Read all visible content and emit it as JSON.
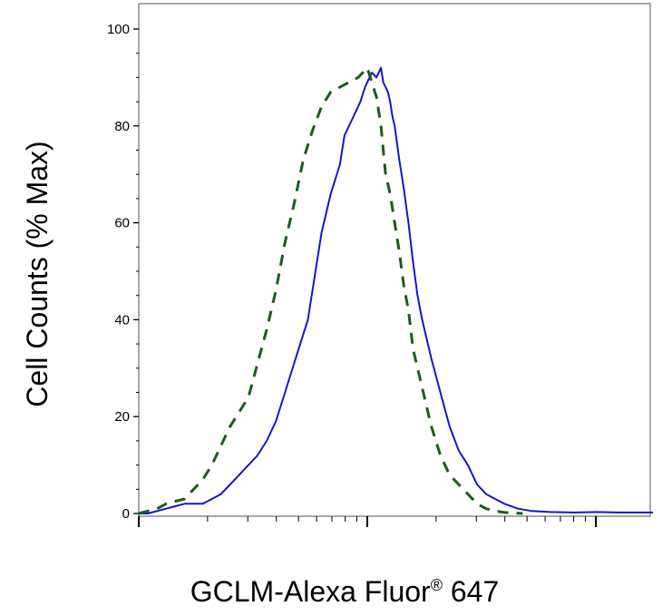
{
  "chart_data": {
    "type": "line",
    "title": "",
    "xlabel": "GCLM-Alexa Fluor",
    "xlabel_mark": "®",
    "xlabel_suffix": " 647",
    "ylabel": "Cell Counts (% Max)",
    "x_scale": "log",
    "x_tick_labels": [],
    "xlim_decades": [
      0,
      2.25
    ],
    "ylim": [
      0,
      102
    ],
    "y_ticks": [
      0,
      20,
      40,
      60,
      80,
      100
    ],
    "y_tick_labels": [
      "0",
      "20",
      "40",
      "60",
      "80",
      "100"
    ],
    "grid": false,
    "legend": "none",
    "series": [
      {
        "color": "#1515c8",
        "style": "solid",
        "x": [
          0.0,
          0.04,
          0.08,
          0.12,
          0.16,
          0.2,
          0.24,
          0.28,
          0.32,
          0.36,
          0.4,
          0.44,
          0.48,
          0.52,
          0.56,
          0.6,
          0.64,
          0.66,
          0.7,
          0.74,
          0.8,
          0.84,
          0.88,
          0.9,
          0.93,
          0.95,
          0.97,
          0.99,
          1.0,
          1.02,
          1.04,
          1.06,
          1.07,
          1.08,
          1.09,
          1.1,
          1.11,
          1.12,
          1.14,
          1.16,
          1.18,
          1.2,
          1.22,
          1.24,
          1.28,
          1.32,
          1.36,
          1.4,
          1.44,
          1.48,
          1.52,
          1.56,
          1.6,
          1.66,
          1.72,
          1.8,
          1.9,
          2.0,
          2.1,
          2.25
        ],
        "y": [
          0,
          0,
          0.5,
          1,
          1.5,
          2,
          2,
          2,
          3,
          4,
          6,
          8,
          10,
          12,
          15,
          19,
          25,
          28,
          34,
          40,
          58,
          66,
          72,
          78,
          81,
          83,
          85,
          88,
          89,
          91,
          90,
          92,
          89,
          88,
          87,
          85,
          82,
          80,
          73,
          67,
          60,
          52,
          45,
          40,
          32,
          25,
          18,
          13,
          10,
          6,
          4,
          3,
          2,
          1,
          0.5,
          0.3,
          0.2,
          0.3,
          0.2,
          0.2
        ]
      },
      {
        "color": "#1e5a1e",
        "style": "dashed",
        "x": [
          0.0,
          0.04,
          0.08,
          0.12,
          0.16,
          0.2,
          0.24,
          0.28,
          0.32,
          0.36,
          0.4,
          0.44,
          0.48,
          0.52,
          0.56,
          0.6,
          0.64,
          0.68,
          0.72,
          0.76,
          0.8,
          0.84,
          0.88,
          0.92,
          0.96,
          0.98,
          1.0,
          1.02,
          1.04,
          1.06,
          1.07,
          1.08,
          1.1,
          1.12,
          1.14,
          1.16,
          1.18,
          1.2,
          1.24,
          1.28,
          1.32,
          1.36,
          1.4,
          1.44,
          1.48,
          1.52,
          1.56,
          1.6,
          1.64,
          1.68
        ],
        "y": [
          0,
          0.5,
          1,
          2,
          2.5,
          3,
          5,
          7,
          10,
          14,
          18,
          21,
          24,
          31,
          38,
          46,
          56,
          64,
          73,
          79,
          84,
          87,
          88,
          89,
          90,
          91,
          92,
          89,
          86,
          80,
          75,
          70,
          66,
          60,
          54,
          47,
          42,
          34,
          26,
          18,
          12,
          8,
          6,
          4,
          2,
          1,
          0.5,
          0.2,
          0.1,
          0
        ]
      }
    ]
  }
}
